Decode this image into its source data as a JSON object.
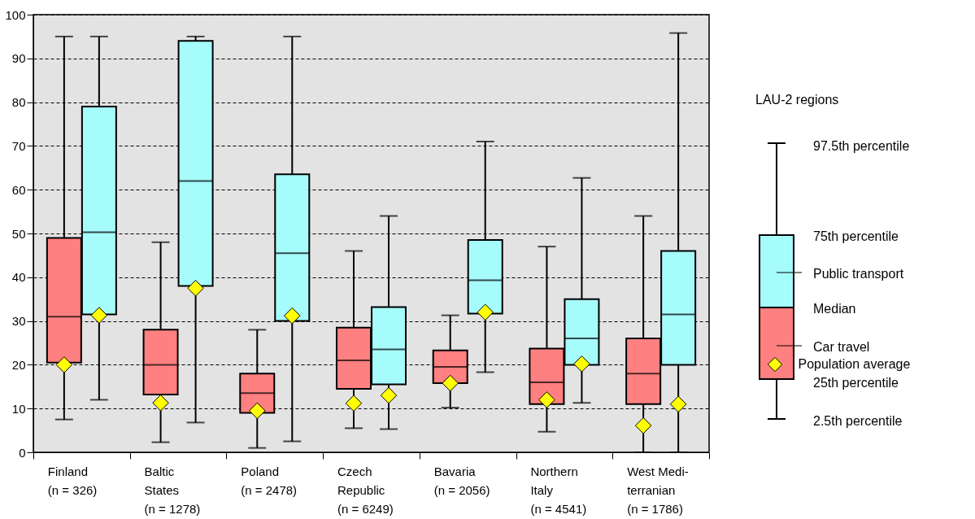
{
  "chart_data": {
    "type": "box",
    "categories": [
      "Finland\n\n(n =  326)",
      "Baltic\nStates\n(n = 1278)",
      "Poland\n\n(n = 2478)",
      "Czech\nRepublic\n(n = 6249)",
      "Bavaria\n\n(n = 2056)",
      "Northern\nItaly\n(n = 4541)",
      "West Medi-\nterranian\n(n = 1786)"
    ],
    "series": [
      {
        "name": "Car travel",
        "color": "#ff8080",
        "boxes": [
          {
            "low": 7.5,
            "q1": 20.5,
            "median": 31,
            "q3": 49,
            "high": 95
          },
          {
            "low": 2.3,
            "q1": 13.2,
            "median": 20,
            "q3": 28,
            "high": 48
          },
          {
            "low": 1,
            "q1": 9,
            "median": 13.5,
            "q3": 18,
            "high": 28
          },
          {
            "low": 5.5,
            "q1": 14.5,
            "median": 21,
            "q3": 28.5,
            "high": 46
          },
          {
            "low": 10.2,
            "q1": 15.8,
            "median": 19.5,
            "q3": 23.3,
            "high": 31.3
          },
          {
            "low": 4.7,
            "q1": 11,
            "median": 16,
            "q3": 23.7,
            "high": 47
          },
          {
            "low": 0,
            "q1": 11,
            "median": 18,
            "q3": 26,
            "high": 54
          }
        ]
      },
      {
        "name": "Public transport",
        "color": "#a6fbfb",
        "boxes": [
          {
            "low": 12,
            "q1": 31.5,
            "median": 50.3,
            "q3": 79,
            "high": 95
          },
          {
            "low": 6.8,
            "q1": 38,
            "median": 62,
            "q3": 94,
            "high": 95
          },
          {
            "low": 2.5,
            "q1": 30,
            "median": 45.5,
            "q3": 63.5,
            "high": 95
          },
          {
            "low": 5.3,
            "q1": 15.5,
            "median": 23.5,
            "q3": 33.2,
            "high": 54
          },
          {
            "low": 18.3,
            "q1": 31.7,
            "median": 39.3,
            "q3": 48.5,
            "high": 71
          },
          {
            "low": 11.3,
            "q1": 20,
            "median": 26,
            "q3": 35,
            "high": 62.7
          },
          {
            "low": 0,
            "q1": 20,
            "median": 31.5,
            "q3": 46,
            "high": 95.8
          }
        ]
      },
      {
        "type": "scatter",
        "name": "Population average",
        "color": "#ffff00",
        "x": [
          "Finland\n\n(n =  326)",
          "Baltic\nStates\n(n = 1278)",
          "Poland\n\n(n = 2478)",
          "Czech\nRepublic\n(n = 6249)",
          "Bavaria\n\n(n = 2056)",
          "Northern\nItaly\n(n = 4541)",
          "West Medi-\nterranian\n(n = 1786)"
        ],
        "values": [
          20,
          11.3,
          9.5,
          11.2,
          15.8,
          12,
          6.1
        ]
      },
      {
        "type": "scatter",
        "color": "#ffff00",
        "x": [
          "Finland\n\n(n =  326)",
          "Baltic\nStates\n(n = 1278)",
          "Poland\n\n(n = 2478)",
          "Czech\nRepublic\n(n = 6249)",
          "Bavaria\n\n(n = 2056)",
          "Northern\nItaly\n(n = 4541)",
          "West Medi-\nterranian\n(n = 1786)"
        ],
        "values": [
          31.3,
          37.5,
          31.2,
          13,
          32,
          20.2,
          11
        ]
      }
    ],
    "marker": "diamond",
    "ylim": [
      0,
      100
    ],
    "yticks": [
      0,
      10,
      20,
      30,
      40,
      50,
      60,
      70,
      80,
      90,
      100
    ],
    "grid": "y",
    "legend": "right",
    "legend_title": "LAU-2 regions",
    "annotations": [
      "97.5th percentile",
      "75th percentile",
      "Median",
      "25th percentile",
      "2.5th percentile"
    ]
  }
}
